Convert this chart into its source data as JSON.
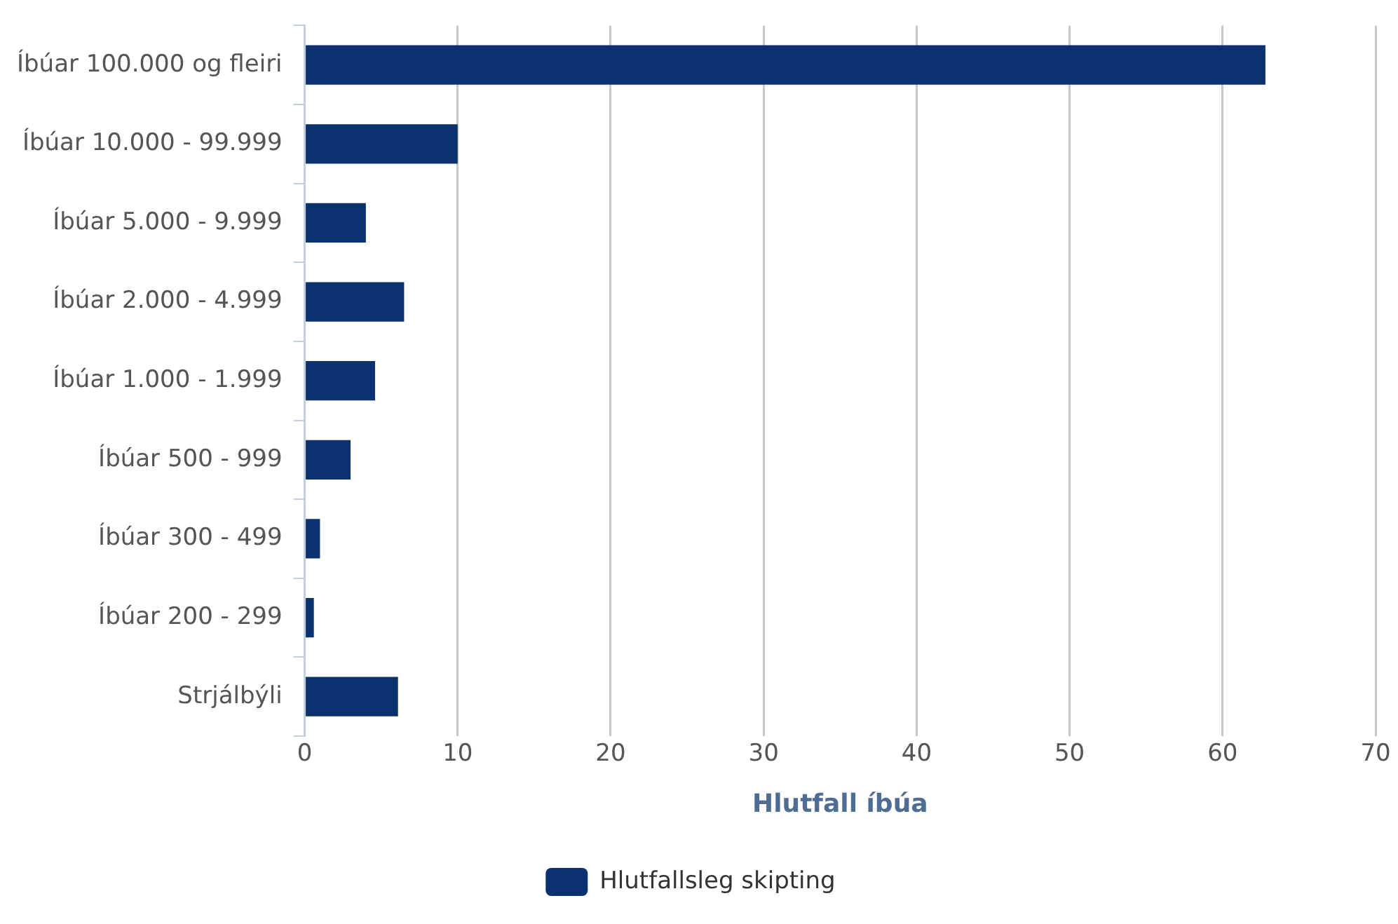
{
  "chart_data": {
    "type": "bar",
    "orientation": "horizontal",
    "xlabel": "Hlutfall íbúa",
    "categories": [
      "Íbúar 100.000 og fleiri",
      "Íbúar 10.000 - 99.999",
      "Íbúar 5.000 - 9.999",
      "Íbúar 2.000 - 4.999",
      "Íbúar 1.000 - 1.999",
      "Íbúar 500 - 999",
      "Íbúar 300 - 499",
      "Íbúar 200 - 299",
      "Strjálbýli"
    ],
    "series": [
      {
        "name": "Hlutfallsleg skipting",
        "color": "#0b316f",
        "values": [
          62.8,
          10.0,
          4.0,
          6.5,
          4.6,
          3.0,
          1.0,
          0.6,
          6.1
        ]
      }
    ],
    "xlim": [
      0,
      70
    ],
    "xticks": [
      0,
      10,
      20,
      30,
      40,
      50,
      60,
      70
    ],
    "grid": "x",
    "legend": "bottom"
  }
}
